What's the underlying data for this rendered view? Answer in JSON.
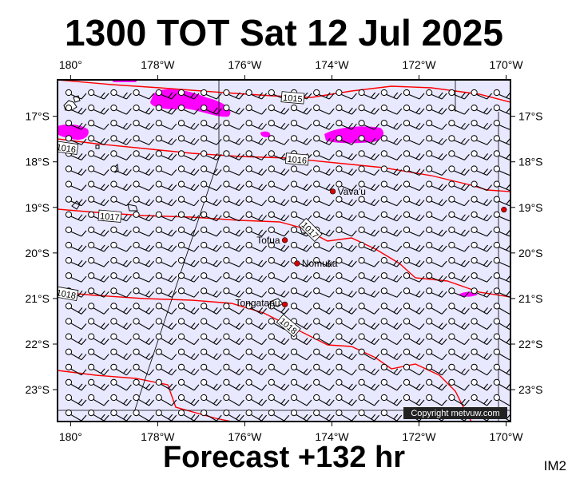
{
  "header": {
    "title": "1300 TOT Sat 12 Jul 2025"
  },
  "footer": {
    "forecast": "Forecast +132 hr",
    "code": "IM2"
  },
  "map": {
    "lon_range": [
      -180.3,
      -169.9
    ],
    "lat_range": [
      -23.7,
      -16.2
    ],
    "lon_ticks": [
      {
        "value": -180,
        "label": "180°"
      },
      {
        "value": -178,
        "label": "178°W"
      },
      {
        "value": -176,
        "label": "176°W"
      },
      {
        "value": -174,
        "label": "174°W"
      },
      {
        "value": -172,
        "label": "172°W"
      },
      {
        "value": -170,
        "label": "170°W"
      }
    ],
    "lat_ticks": [
      {
        "value": -17,
        "label": "17°S"
      },
      {
        "value": -18,
        "label": "18°S"
      },
      {
        "value": -19,
        "label": "19°S"
      },
      {
        "value": -20,
        "label": "20°S"
      },
      {
        "value": -21,
        "label": "21°S"
      },
      {
        "value": -22,
        "label": "22°S"
      },
      {
        "value": -23,
        "label": "23°S"
      }
    ],
    "colors": {
      "ocean": "#e8e8ff",
      "isobar": "#ff0000",
      "rain": "#ff00ff",
      "town": "#dd0000"
    },
    "isobar_labels": [
      {
        "text": "1015",
        "lon": -174.9,
        "lat": -16.6,
        "angle": 5
      },
      {
        "text": "1016",
        "lon": -180.1,
        "lat": -17.7,
        "angle": 8
      },
      {
        "text": "1016",
        "lon": -174.8,
        "lat": -17.95,
        "angle": 5
      },
      {
        "text": "1017",
        "lon": -179.1,
        "lat": -19.2,
        "angle": 5
      },
      {
        "text": "1017",
        "lon": -174.5,
        "lat": -19.5,
        "angle": 45
      },
      {
        "text": "1018",
        "lon": -180.1,
        "lat": -20.9,
        "angle": 10
      },
      {
        "text": "1018",
        "lon": -175.0,
        "lat": -21.6,
        "angle": 40
      }
    ],
    "places": [
      {
        "name": "Vava'u",
        "lon": -173.98,
        "lat": -18.65
      },
      {
        "name": "Tofua",
        "lon": -175.08,
        "lat": -19.72
      },
      {
        "name": "Nomuka",
        "lon": -174.8,
        "lat": -20.23
      },
      {
        "name": "Tongatapu",
        "lon": -175.08,
        "lat": -21.13
      },
      {
        "name": "",
        "lon": -170.05,
        "lat": -19.05
      }
    ],
    "copyright": "Copyright metvuw.com"
  }
}
